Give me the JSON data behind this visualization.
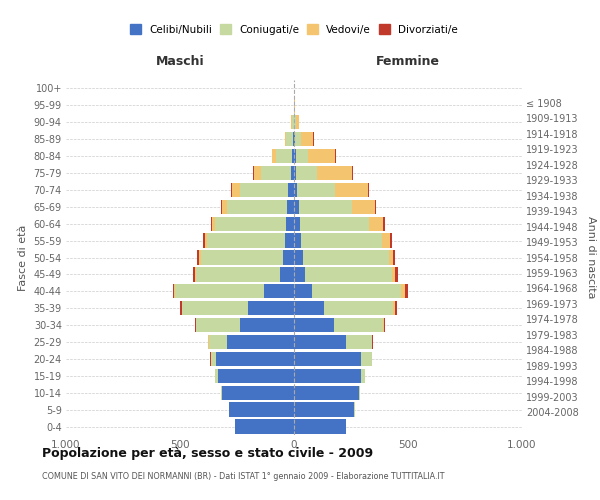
{
  "age_groups": [
    "0-4",
    "5-9",
    "10-14",
    "15-19",
    "20-24",
    "25-29",
    "30-34",
    "35-39",
    "40-44",
    "45-49",
    "50-54",
    "55-59",
    "60-64",
    "65-69",
    "70-74",
    "75-79",
    "80-84",
    "85-89",
    "90-94",
    "95-99",
    "100+"
  ],
  "birth_years": [
    "2004-2008",
    "1999-2003",
    "1994-1998",
    "1989-1993",
    "1984-1988",
    "1979-1983",
    "1974-1978",
    "1969-1973",
    "1964-1968",
    "1959-1963",
    "1954-1958",
    "1949-1953",
    "1944-1948",
    "1939-1943",
    "1934-1938",
    "1929-1933",
    "1924-1928",
    "1919-1923",
    "1914-1918",
    "1909-1913",
    "≤ 1908"
  ],
  "males": {
    "celibi": [
      260,
      285,
      315,
      335,
      340,
      295,
      235,
      200,
      130,
      60,
      50,
      40,
      35,
      30,
      25,
      15,
      10,
      5,
      2,
      0,
      0
    ],
    "coniugati": [
      0,
      2,
      5,
      10,
      25,
      80,
      195,
      290,
      390,
      370,
      360,
      340,
      310,
      265,
      210,
      130,
      70,
      30,
      8,
      2,
      0
    ],
    "vedovi": [
      0,
      0,
      0,
      0,
      1,
      2,
      2,
      3,
      5,
      5,
      8,
      10,
      15,
      20,
      35,
      30,
      15,
      5,
      2,
      0,
      0
    ],
    "divorziati": [
      0,
      0,
      0,
      0,
      1,
      2,
      3,
      5,
      5,
      8,
      8,
      8,
      5,
      5,
      8,
      5,
      2,
      0,
      0,
      0,
      0
    ]
  },
  "females": {
    "nubili": [
      230,
      265,
      285,
      295,
      295,
      230,
      175,
      130,
      80,
      50,
      40,
      30,
      25,
      20,
      15,
      10,
      10,
      5,
      2,
      0,
      0
    ],
    "coniugate": [
      0,
      2,
      5,
      15,
      45,
      110,
      215,
      305,
      390,
      380,
      375,
      355,
      305,
      235,
      165,
      90,
      50,
      25,
      8,
      2,
      0
    ],
    "vedove": [
      0,
      0,
      0,
      1,
      2,
      3,
      5,
      10,
      15,
      15,
      20,
      35,
      60,
      100,
      145,
      155,
      120,
      55,
      10,
      2,
      0
    ],
    "divorziate": [
      0,
      0,
      0,
      0,
      1,
      2,
      5,
      8,
      15,
      10,
      10,
      10,
      8,
      5,
      5,
      5,
      3,
      2,
      0,
      0,
      0
    ]
  },
  "colors": {
    "celibi_nubili": "#4472C4",
    "coniugati": "#C5D9A0",
    "vedovi": "#F5C46E",
    "divorziati": "#C0392B"
  },
  "title": "Popolazione per età, sesso e stato civile - 2009",
  "subtitle": "COMUNE DI SAN VITO DEI NORMANNI (BR) - Dati ISTAT 1° gennaio 2009 - Elaborazione TUTTITALIA.IT",
  "xlabel_left": "Maschi",
  "xlabel_right": "Femmine",
  "ylabel_left": "Fasce di età",
  "ylabel_right": "Anni di nascita",
  "xlim": 1000,
  "legend_labels": [
    "Celibi/Nubili",
    "Coniugati/e",
    "Vedovi/e",
    "Divorziati/e"
  ],
  "background_color": "#ffffff",
  "grid_color": "#cccccc"
}
